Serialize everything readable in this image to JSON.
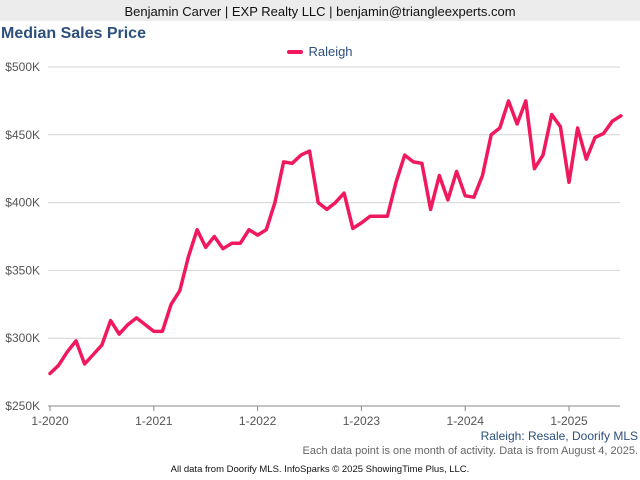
{
  "header": {
    "text": "Benjamin Carver | EXP Realty LLC | benjamin@triangleexperts.com"
  },
  "title": "Median Sales Price",
  "colors": {
    "series": "#f0195e",
    "title": "#2d4f7c",
    "grid": "#d4d4d4",
    "axis": "#888888"
  },
  "source_note": "Raleigh: Resale, Doorify MLS",
  "note": "Each data point is one month of activity. Data is from August 4, 2025.",
  "footer": "All data from Doorify MLS. InfoSparks © 2025 ShowingTime Plus, LLC.",
  "chart_data": {
    "type": "line",
    "title": "Median Sales Price",
    "legend_position": "top-center",
    "grid": true,
    "ylim": [
      250000,
      500000
    ],
    "y_ticks": [
      250000,
      300000,
      350000,
      400000,
      450000,
      500000
    ],
    "y_tick_labels": [
      "$250K",
      "$300K",
      "$350K",
      "$400K",
      "$450K",
      "$500K"
    ],
    "x_ticks": [
      "1-2020",
      "1-2021",
      "1-2022",
      "1-2023",
      "1-2024",
      "1-2025"
    ],
    "x_tick_index": [
      0,
      12,
      24,
      36,
      48,
      60
    ],
    "x_count": 67,
    "series": [
      {
        "name": "Raleigh",
        "values": [
          274000,
          280000,
          290000,
          298000,
          281000,
          288000,
          295000,
          313000,
          303000,
          310000,
          315000,
          310000,
          305000,
          305000,
          325000,
          335000,
          360000,
          380000,
          367000,
          375000,
          366000,
          370000,
          370000,
          380000,
          376000,
          380000,
          400000,
          430000,
          429000,
          435000,
          438000,
          400000,
          395000,
          400000,
          407000,
          381000,
          385000,
          390000,
          390000,
          390000,
          415000,
          435000,
          430000,
          429000,
          395000,
          420000,
          402000,
          423000,
          405000,
          404000,
          420000,
          450000,
          455000,
          475000,
          458000,
          475000,
          425000,
          435000,
          465000,
          456000,
          415000,
          455000,
          432000,
          448000,
          451000,
          460000,
          464000
        ]
      }
    ]
  }
}
